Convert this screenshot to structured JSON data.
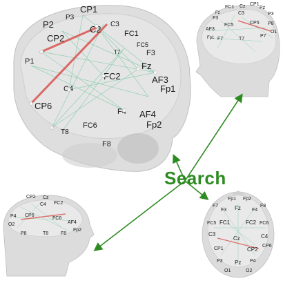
{
  "center_label": "Search",
  "arrow_color": "#2e8b22",
  "strong_link_color": "#d9534f",
  "link_color": "#7cc9a7",
  "views": {
    "main": {
      "electrodes": [
        "CP1",
        "P3",
        "P2",
        "CP2",
        "C2",
        "C3",
        "FC1",
        "FC5",
        "F3",
        "Fz",
        "AF3",
        "Fp1",
        "FC2",
        "C4",
        "P1",
        "CP6",
        "F4",
        "AF4",
        "Fp2",
        "FC6",
        "T8",
        "F8",
        "T7"
      ]
    },
    "top_right": {
      "electrodes": [
        "FC1",
        "Cz",
        "CP1",
        "Pz",
        "P3",
        "F3",
        "C3",
        "AF3",
        "FC5",
        "CP5",
        "P8",
        "O1",
        "F7",
        "T7",
        "P7",
        "Fz",
        "Fp1"
      ]
    },
    "bottom_left": {
      "electrodes": [
        "CP2",
        "Cz",
        "C4",
        "FC2",
        "P4",
        "CP6",
        "FC6",
        "AF4",
        "O2",
        "P8",
        "T8",
        "F8",
        "Fp2"
      ]
    },
    "bottom_right": {
      "electrodes": [
        "Fp1",
        "Fp2",
        "F7",
        "F3",
        "Fz",
        "F4",
        "F8",
        "FC5",
        "FC1",
        "FC2",
        "FC6",
        "C3",
        "Cz",
        "C4",
        "CP1",
        "CP2",
        "CP6",
        "P3",
        "Pz",
        "P4",
        "O1",
        "O2"
      ]
    }
  }
}
